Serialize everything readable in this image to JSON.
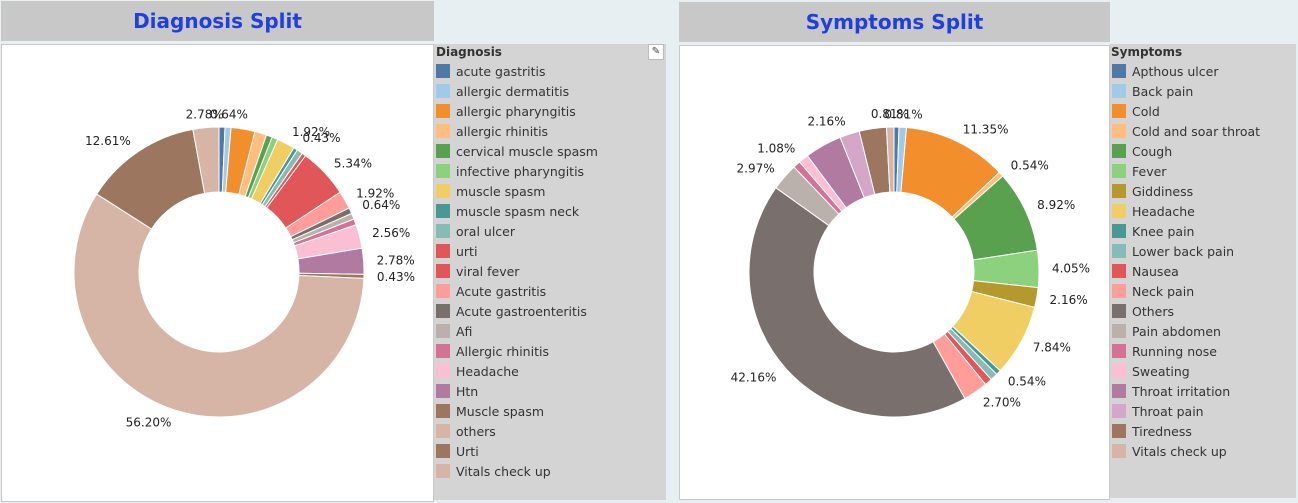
{
  "left": {
    "title": "Diagnosis Split",
    "legend_title": "Diagnosis",
    "chart_data": {
      "type": "pie",
      "title": "Diagnosis Split",
      "slices": [
        {
          "label": "acute gastritis",
          "value": 0.64,
          "color": "#4e79a7",
          "display": ""
        },
        {
          "label": "allergic dermatitis",
          "value": 0.64,
          "color": "#a0cbe8",
          "display": "0.64%"
        },
        {
          "label": "allergic pharyngitis",
          "value": 2.56,
          "color": "#f28e2b",
          "display": ""
        },
        {
          "label": "allergic rhinitis",
          "value": 1.28,
          "color": "#ffbe7d",
          "display": ""
        },
        {
          "label": "cervical muscle spasm",
          "value": 0.64,
          "color": "#59a14f",
          "display": ""
        },
        {
          "label": "infective pharyngitis",
          "value": 0.64,
          "color": "#8cd17d",
          "display": ""
        },
        {
          "label": "muscle spasm",
          "value": 1.92,
          "color": "#f1ce63",
          "display": "1.92%"
        },
        {
          "label": "muscle spasm neck",
          "value": 0.43,
          "color": "#499894",
          "display": "0.43%"
        },
        {
          "label": "oral ulcer",
          "value": 0.64,
          "color": "#86bcb6",
          "display": ""
        },
        {
          "label": "urti",
          "value": 0.43,
          "color": "#e15759",
          "display": ""
        },
        {
          "label": "viral fever",
          "value": 5.34,
          "color": "#e15759",
          "display": "5.34%"
        },
        {
          "label": "Acute gastritis",
          "value": 1.92,
          "color": "#ff9d9a",
          "display": "1.92%"
        },
        {
          "label": "Acute gastroenteritis",
          "value": 0.64,
          "color": "#79706e",
          "display": "0.64%"
        },
        {
          "label": "Afi",
          "value": 0.64,
          "color": "#bab0ac",
          "display": ""
        },
        {
          "label": "Allergic rhinitis",
          "value": 0.64,
          "color": "#d37295",
          "display": ""
        },
        {
          "label": "Headache",
          "value": 2.56,
          "color": "#fabfd2",
          "display": "2.56%"
        },
        {
          "label": "Htn",
          "value": 2.78,
          "color": "#b07aa1",
          "display": "2.78%"
        },
        {
          "label": "Muscle spasm",
          "value": 0.43,
          "color": "#9d7660",
          "display": "0.43%"
        },
        {
          "label": "others",
          "value": 56.2,
          "color": "#d7b5a6",
          "display": "56.20%"
        },
        {
          "label": "Urti",
          "value": 12.61,
          "color": "#9d7660",
          "display": "12.61%"
        },
        {
          "label": "Vitals check up",
          "value": 2.78,
          "color": "#d7b5a6",
          "display": "2.78%"
        }
      ]
    }
  },
  "right": {
    "title": "Symptoms Split",
    "legend_title": "Symptoms",
    "chart_data": {
      "type": "pie",
      "title": "Symptoms Split",
      "slices": [
        {
          "label": "Apthous ulcer",
          "value": 0.54,
          "color": "#4e79a7",
          "display": ""
        },
        {
          "label": "Back pain",
          "value": 0.81,
          "color": "#a0cbe8",
          "display": "0.81%"
        },
        {
          "label": "Cold",
          "value": 11.35,
          "color": "#f28e2b",
          "display": "11.35%"
        },
        {
          "label": "Cold and soar throat",
          "value": 0.54,
          "color": "#ffbe7d",
          "display": "0.54%"
        },
        {
          "label": "Cough",
          "value": 8.92,
          "color": "#59a14f",
          "display": "8.92%"
        },
        {
          "label": "Fever",
          "value": 4.05,
          "color": "#8cd17d",
          "display": "4.05%"
        },
        {
          "label": "Giddiness",
          "value": 2.16,
          "color": "#b6992d",
          "display": "2.16%"
        },
        {
          "label": "Headache",
          "value": 7.84,
          "color": "#f1ce63",
          "display": "7.84%"
        },
        {
          "label": "Knee pain",
          "value": 0.54,
          "color": "#499894",
          "display": "0.54%"
        },
        {
          "label": "Lower back pain",
          "value": 0.81,
          "color": "#86bcb6",
          "display": ""
        },
        {
          "label": "Nausea",
          "value": 0.81,
          "color": "#e15759",
          "display": ""
        },
        {
          "label": "Neck pain",
          "value": 2.7,
          "color": "#ff9d9a",
          "display": "2.70%"
        },
        {
          "label": "Others",
          "value": 42.16,
          "color": "#79706e",
          "display": "42.16%"
        },
        {
          "label": "Pain abdomen",
          "value": 2.97,
          "color": "#bab0ac",
          "display": "2.97%"
        },
        {
          "label": "Running nose",
          "value": 0.81,
          "color": "#d37295",
          "display": ""
        },
        {
          "label": "Sweating",
          "value": 1.08,
          "color": "#fabfd2",
          "display": "1.08%"
        },
        {
          "label": "Throat irritation",
          "value": 4.05,
          "color": "#b07aa1",
          "display": ""
        },
        {
          "label": "Throat pain",
          "value": 2.16,
          "color": "#d4a6c8",
          "display": "2.16%"
        },
        {
          "label": "Tiredness",
          "value": 2.97,
          "color": "#9d7660",
          "display": ""
        },
        {
          "label": "Vitals check up",
          "value": 0.81,
          "color": "#d7b5a6",
          "display": "0.81%"
        }
      ]
    }
  }
}
